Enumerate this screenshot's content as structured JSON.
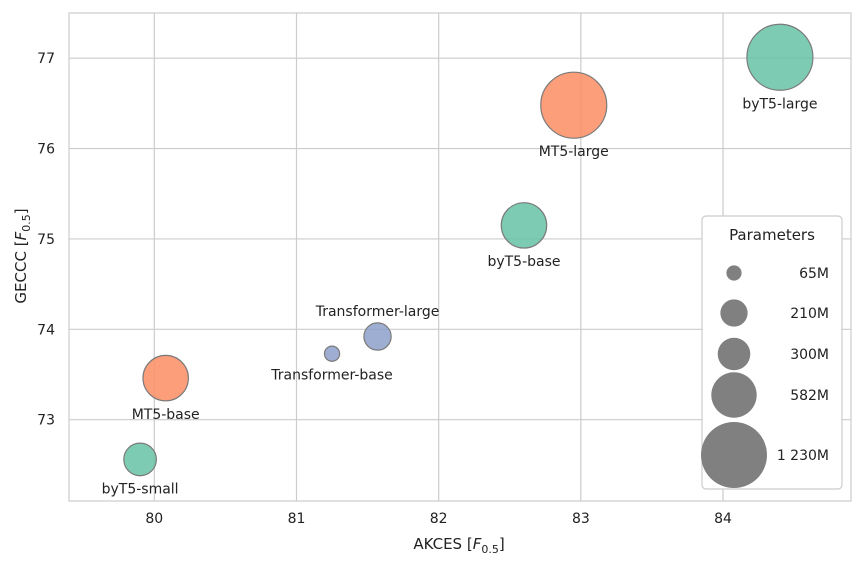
{
  "chart_data": {
    "type": "scatter",
    "title": "",
    "xlabel": {
      "main": "AKCES [",
      "italic": "F",
      "sub": "0.5",
      "end": "]"
    },
    "ylabel": {
      "main": "GECCC [",
      "italic": "F",
      "sub": "0.5",
      "end": "]"
    },
    "xlim": [
      79.4,
      84.9
    ],
    "ylim": [
      72.1,
      77.5
    ],
    "xticks": [
      "80",
      "81",
      "82",
      "83",
      "84"
    ],
    "yticks": [
      "73",
      "74",
      "75",
      "76",
      "77"
    ],
    "grid": true,
    "points": [
      {
        "label": "byT5-small",
        "x": 79.9,
        "y": 72.56,
        "params_m": 300,
        "color": "#66c2a5",
        "label_pos": "below"
      },
      {
        "label": "MT5-base",
        "x": 80.08,
        "y": 73.46,
        "params_m": 582,
        "color": "#fc8d62",
        "label_pos": "below"
      },
      {
        "label": "Transformer-base",
        "x": 81.25,
        "y": 73.73,
        "params_m": 65,
        "color": "#8da0cb",
        "label_pos": "below"
      },
      {
        "label": "Transformer-large",
        "x": 81.57,
        "y": 73.92,
        "params_m": 210,
        "color": "#8da0cb",
        "label_pos": "above"
      },
      {
        "label": "byT5-base",
        "x": 82.6,
        "y": 75.15,
        "params_m": 582,
        "color": "#66c2a5",
        "label_pos": "below"
      },
      {
        "label": "MT5-large",
        "x": 82.95,
        "y": 76.48,
        "params_m": 1230,
        "color": "#fc8d62",
        "label_pos": "below"
      },
      {
        "label": "byT5-large",
        "x": 84.4,
        "y": 77.01,
        "params_m": 1230,
        "color": "#66c2a5",
        "label_pos": "below"
      }
    ],
    "legend": {
      "title": "Parameters",
      "placement": "bottom-right",
      "color": "#808080",
      "entries": [
        {
          "label": "65M",
          "params_m": 65
        },
        {
          "label": "210M",
          "params_m": 210
        },
        {
          "label": "300M",
          "params_m": 300
        },
        {
          "label": "582M",
          "params_m": 582
        },
        {
          "label": "1 230M",
          "params_m": 1230
        }
      ]
    }
  }
}
